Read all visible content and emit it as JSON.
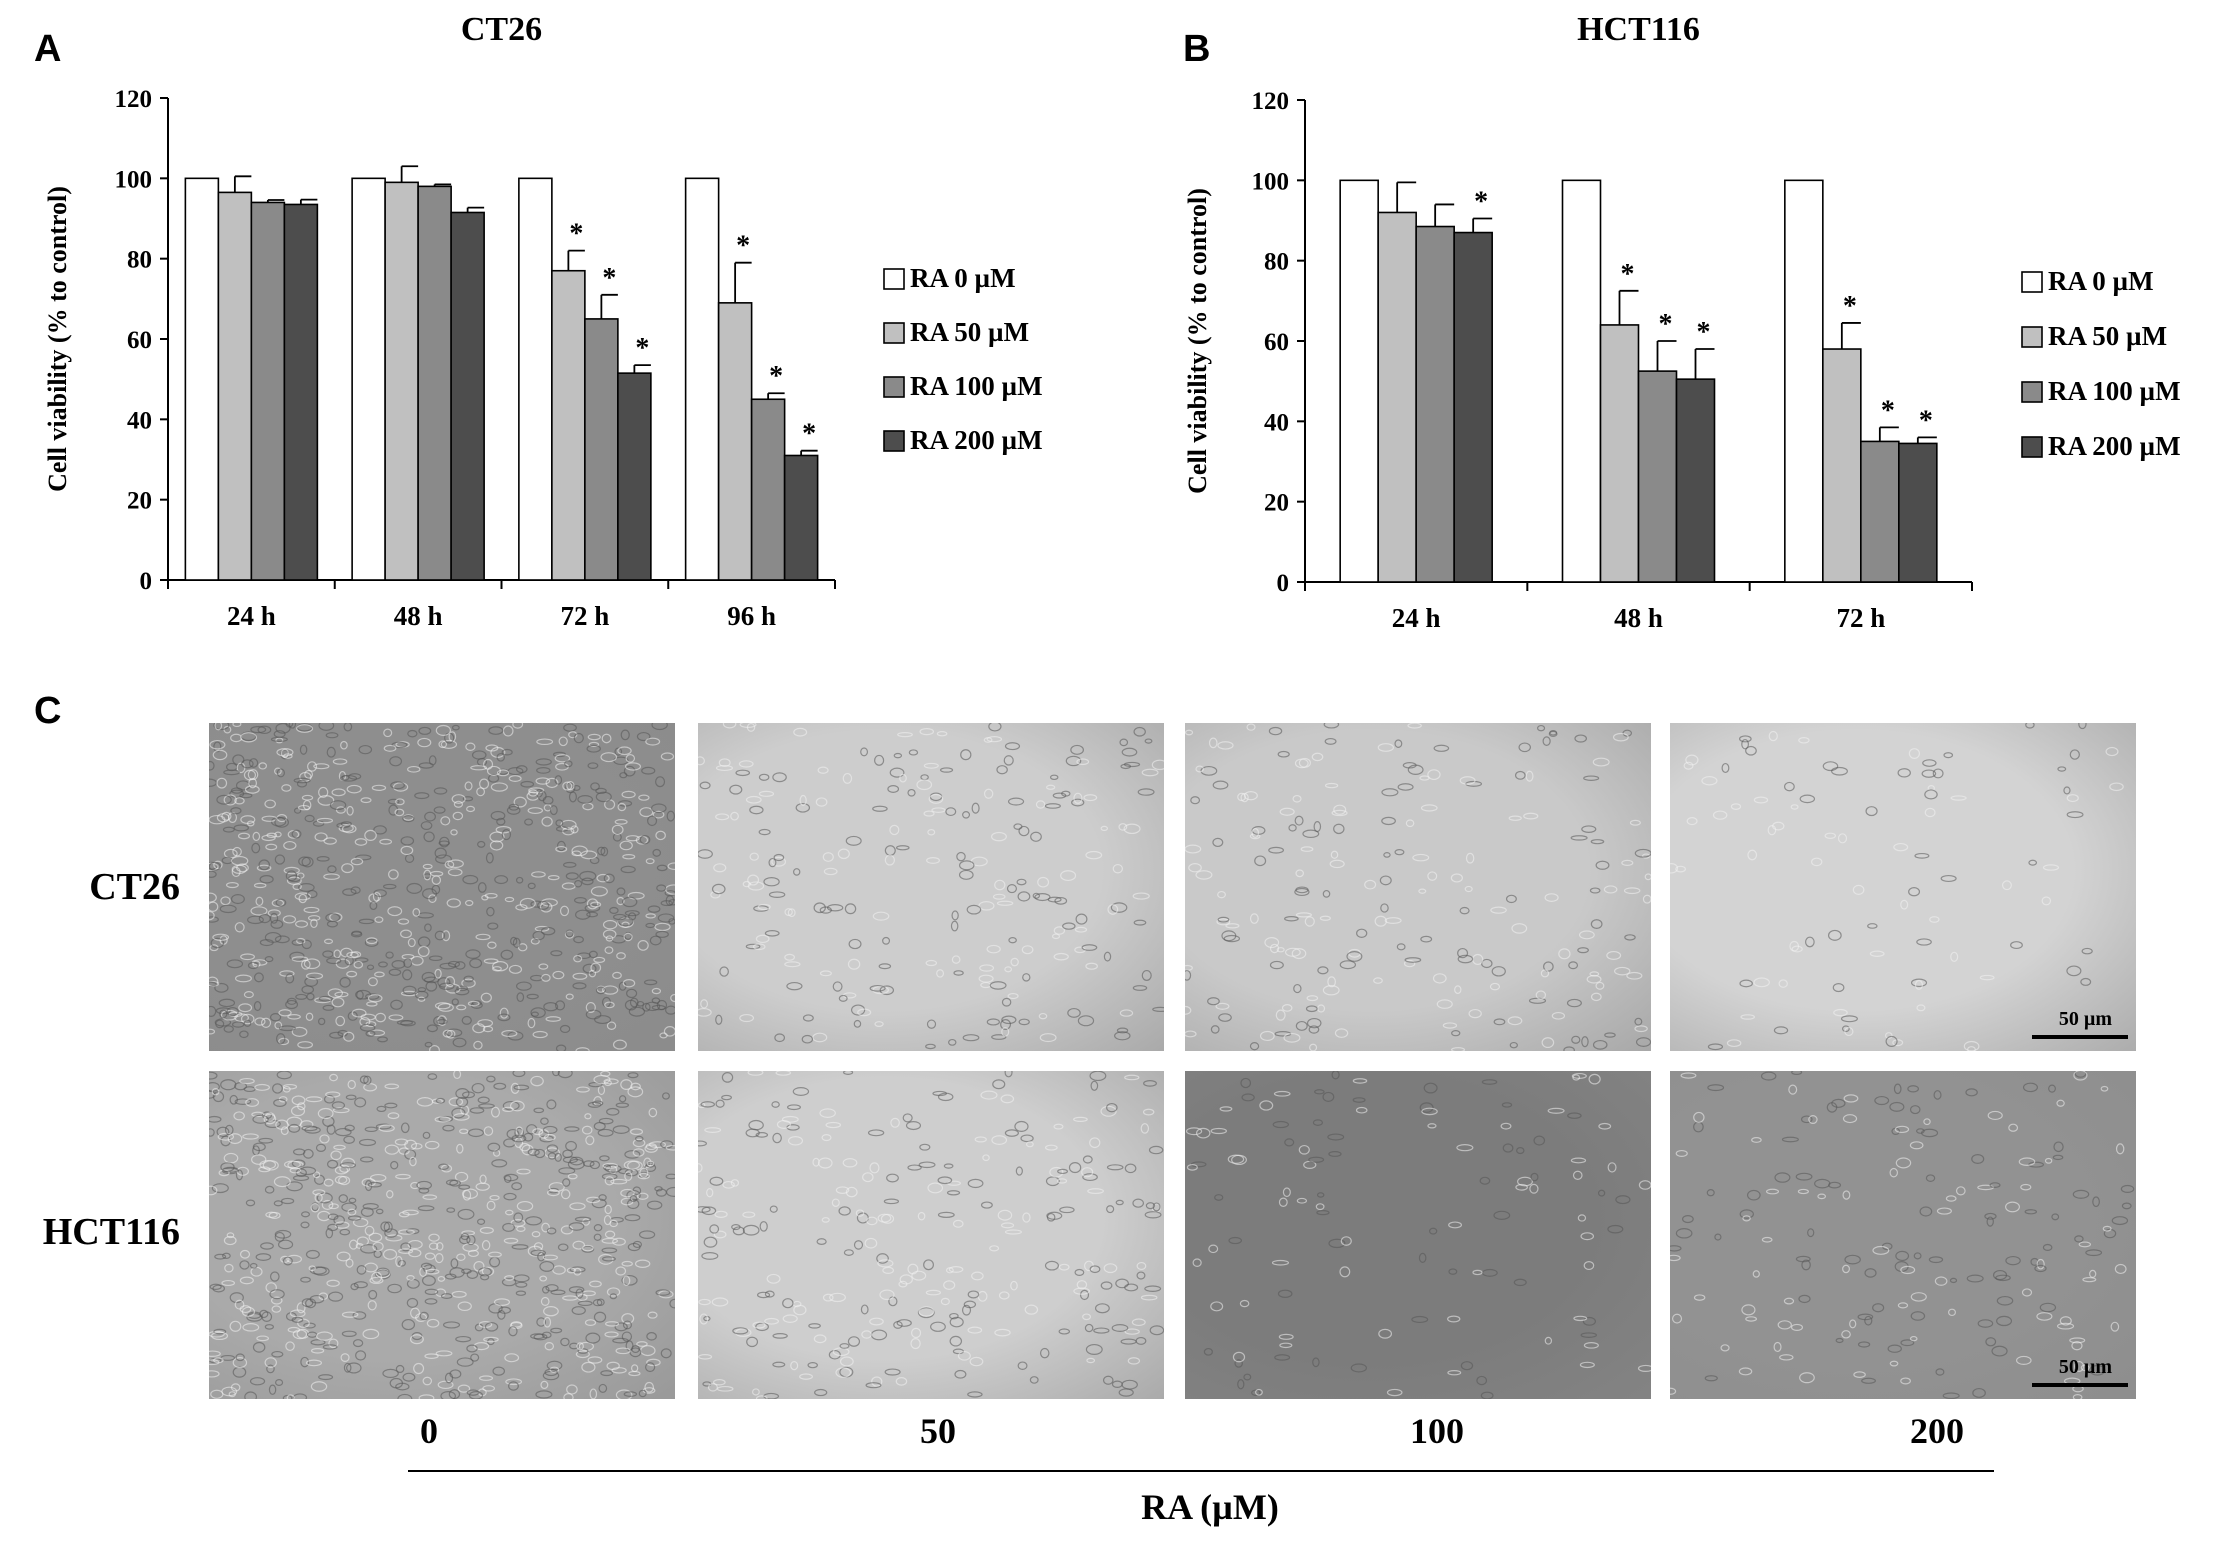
{
  "panels": {
    "a_letter": "A",
    "b_letter": "B",
    "c_letter": "C"
  },
  "chart_data": [
    {
      "type": "bar",
      "title": "CT26",
      "ylabel": "Cell viability  (% to control)",
      "xlabel": "",
      "ylim": [
        0,
        120
      ],
      "yticks": [
        0,
        20,
        40,
        60,
        80,
        100,
        120
      ],
      "categories": [
        "24 h",
        "48 h",
        "72 h",
        "96 h"
      ],
      "legend_position": "right",
      "series": [
        {
          "name": "RA  0 µM",
          "color": "#ffffff",
          "values": [
            100,
            100,
            100,
            100
          ],
          "errors": [
            0,
            0,
            0,
            0
          ],
          "significant": [
            false,
            false,
            false,
            false
          ]
        },
        {
          "name": "RA  50 µM",
          "color": "#c0c0c0",
          "values": [
            96.5,
            99,
            77,
            69
          ],
          "errors": [
            4,
            4,
            5,
            10
          ],
          "significant": [
            false,
            false,
            true,
            true
          ]
        },
        {
          "name": "RA  100 µM",
          "color": "#8a8a8a",
          "values": [
            94,
            98,
            65,
            45
          ],
          "errors": [
            0.6,
            0.5,
            6,
            1.5
          ],
          "significant": [
            false,
            false,
            true,
            true
          ]
        },
        {
          "name": "RA  200 µM",
          "color": "#4d4d4d",
          "values": [
            93.5,
            91.5,
            51.5,
            31
          ],
          "errors": [
            1.2,
            1.2,
            2,
            1.2
          ],
          "significant": [
            false,
            false,
            true,
            true
          ]
        }
      ]
    },
    {
      "type": "bar",
      "title": "HCT116",
      "ylabel": "Cell viability  (% to control)",
      "xlabel": "",
      "ylim": [
        0,
        120
      ],
      "yticks": [
        0,
        20,
        40,
        60,
        80,
        100,
        120
      ],
      "categories": [
        "24 h",
        "48 h",
        "72 h"
      ],
      "legend_position": "right",
      "series": [
        {
          "name": "RA  0 µM",
          "color": "#ffffff",
          "values": [
            100,
            100,
            100
          ],
          "errors": [
            0,
            0,
            0
          ],
          "significant": [
            false,
            false,
            false
          ]
        },
        {
          "name": "RA  50 µM",
          "color": "#c0c0c0",
          "values": [
            92,
            64,
            58
          ],
          "errors": [
            7.5,
            8.5,
            6.5
          ],
          "significant": [
            false,
            true,
            true
          ]
        },
        {
          "name": "RA  100 µM",
          "color": "#8a8a8a",
          "values": [
            88.5,
            52.5,
            35
          ],
          "errors": [
            5.5,
            7.5,
            3.5
          ],
          "significant": [
            false,
            true,
            true
          ]
        },
        {
          "name": "RA  200 µM",
          "color": "#4d4d4d",
          "values": [
            87,
            50.5,
            34.5
          ],
          "errors": [
            3.5,
            7.5,
            1.5
          ],
          "significant": [
            true,
            true,
            true
          ]
        }
      ]
    }
  ],
  "significance_marker": "*",
  "micrographs": {
    "rows": [
      "CT26",
      "HCT116"
    ],
    "doses": [
      "0",
      "50",
      "100",
      "200"
    ],
    "scale_bar": "50 µm",
    "axis_label": "RA (µM)",
    "tones": [
      [
        "#8e8e8e",
        "#cdcdcd",
        "#c9c9c9",
        "#d3d3d3"
      ],
      [
        "#aaaaaa",
        "#cecece",
        "#7c7c7c",
        "#929292"
      ]
    ]
  }
}
